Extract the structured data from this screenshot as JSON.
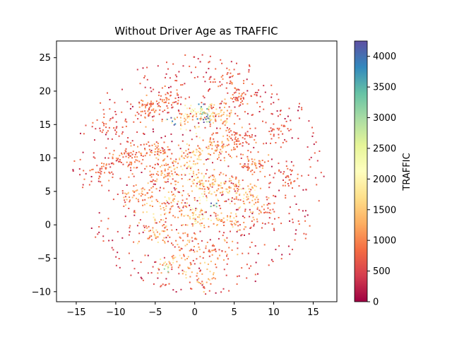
{
  "chart_data": {
    "type": "scatter",
    "title": "Without Driver Age as TRAFFIC",
    "xlabel": "",
    "ylabel": "",
    "xlim": [
      -17.5,
      18
    ],
    "ylim": [
      -11.5,
      27.5
    ],
    "xticks": [
      -15,
      -10,
      -5,
      0,
      5,
      10,
      15
    ],
    "yticks": [
      -10,
      -5,
      0,
      5,
      10,
      15,
      20,
      25
    ],
    "grid": false,
    "colorbar": {
      "label": "TRAFFIC",
      "range": [
        0,
        4250
      ],
      "ticks": [
        0,
        500,
        1000,
        1500,
        2000,
        2500,
        3000,
        3500,
        4000
      ],
      "colormap": "Spectral",
      "colors": [
        "#9e0142",
        "#d53e4f",
        "#f46d43",
        "#fdae61",
        "#fee08b",
        "#ffffbf",
        "#e6f598",
        "#abdda4",
        "#66c2a5",
        "#3288bd",
        "#5e4fa2"
      ]
    },
    "clusters": [
      {
        "x": -6.0,
        "y": 17.5,
        "n": 60,
        "sx": 1.0,
        "sy": 1.0,
        "traffic": 900
      },
      {
        "x": -3.0,
        "y": 19.0,
        "n": 40,
        "sx": 0.8,
        "sy": 0.8,
        "traffic": 800
      },
      {
        "x": -1.0,
        "y": 15.5,
        "n": 40,
        "sx": 0.8,
        "sy": 1.0,
        "traffic": 1500
      },
      {
        "x": 1.0,
        "y": 17.0,
        "n": 35,
        "sx": 0.6,
        "sy": 0.6,
        "traffic": 2800
      },
      {
        "x": 3.0,
        "y": 16.5,
        "n": 60,
        "sx": 1.0,
        "sy": 1.0,
        "traffic": 1300
      },
      {
        "x": 5.5,
        "y": 19.0,
        "n": 35,
        "sx": 0.7,
        "sy": 0.7,
        "traffic": 900
      },
      {
        "x": -8.5,
        "y": 10.0,
        "n": 60,
        "sx": 1.1,
        "sy": 1.2,
        "traffic": 900
      },
      {
        "x": -5.0,
        "y": 11.0,
        "n": 45,
        "sx": 0.8,
        "sy": 0.8,
        "traffic": 1000
      },
      {
        "x": -3.5,
        "y": 8.0,
        "n": 70,
        "sx": 1.2,
        "sy": 1.2,
        "traffic": 1100
      },
      {
        "x": -0.5,
        "y": 10.0,
        "n": 60,
        "sx": 1.0,
        "sy": 1.3,
        "traffic": 1400
      },
      {
        "x": 2.5,
        "y": 11.5,
        "n": 70,
        "sx": 1.3,
        "sy": 1.2,
        "traffic": 1200
      },
      {
        "x": 5.5,
        "y": 12.5,
        "n": 50,
        "sx": 1.0,
        "sy": 1.0,
        "traffic": 900
      },
      {
        "x": 7.5,
        "y": 9.0,
        "n": 45,
        "sx": 1.0,
        "sy": 1.0,
        "traffic": 1000
      },
      {
        "x": 0.5,
        "y": 6.0,
        "n": 60,
        "sx": 1.3,
        "sy": 1.0,
        "traffic": 1700
      },
      {
        "x": 3.5,
        "y": 5.5,
        "n": 60,
        "sx": 1.2,
        "sy": 1.0,
        "traffic": 1300
      },
      {
        "x": 6.5,
        "y": 4.5,
        "n": 50,
        "sx": 1.0,
        "sy": 1.0,
        "traffic": 1600
      },
      {
        "x": -7.0,
        "y": 4.5,
        "n": 50,
        "sx": 1.2,
        "sy": 1.0,
        "traffic": 1100
      },
      {
        "x": -3.0,
        "y": 3.0,
        "n": 50,
        "sx": 1.2,
        "sy": 1.0,
        "traffic": 1400
      },
      {
        "x": 0.5,
        "y": 1.5,
        "n": 50,
        "sx": 1.2,
        "sy": 1.0,
        "traffic": 1700
      },
      {
        "x": 4.5,
        "y": 0.5,
        "n": 45,
        "sx": 1.2,
        "sy": 1.0,
        "traffic": 1200
      },
      {
        "x": -5.0,
        "y": -1.0,
        "n": 45,
        "sx": 1.2,
        "sy": 1.0,
        "traffic": 1300
      },
      {
        "x": -1.0,
        "y": -2.5,
        "n": 40,
        "sx": 1.2,
        "sy": 1.0,
        "traffic": 1100
      },
      {
        "x": 2.5,
        "y": -4.0,
        "n": 40,
        "sx": 1.2,
        "sy": 1.0,
        "traffic": 1000
      },
      {
        "x": -3.0,
        "y": -6.0,
        "n": 35,
        "sx": 1.2,
        "sy": 1.0,
        "traffic": 1400
      },
      {
        "x": 1.0,
        "y": -8.0,
        "n": 30,
        "sx": 1.0,
        "sy": 0.8,
        "traffic": 1200
      },
      {
        "x": 10.5,
        "y": 14.0,
        "n": 30,
        "sx": 1.0,
        "sy": 1.0,
        "traffic": 800
      },
      {
        "x": 11.5,
        "y": 7.5,
        "n": 30,
        "sx": 1.0,
        "sy": 1.0,
        "traffic": 700
      },
      {
        "x": 8.5,
        "y": 2.5,
        "n": 30,
        "sx": 1.0,
        "sy": 1.0,
        "traffic": 1000
      },
      {
        "x": -10.5,
        "y": 15.0,
        "n": 30,
        "sx": 1.0,
        "sy": 1.0,
        "traffic": 700
      },
      {
        "x": -11.5,
        "y": 8.0,
        "n": 30,
        "sx": 1.0,
        "sy": 1.0,
        "traffic": 800
      },
      {
        "x": 4.0,
        "y": 21.5,
        "n": 25,
        "sx": 1.0,
        "sy": 0.8,
        "traffic": 900
      },
      {
        "x": 1.5,
        "y": 15.8,
        "n": 12,
        "sx": 0.3,
        "sy": 0.3,
        "traffic": 3600
      },
      {
        "x": 2.5,
        "y": 3.0,
        "n": 8,
        "sx": 0.3,
        "sy": 0.3,
        "traffic": 3400
      },
      {
        "x": -3.0,
        "y": 15.5,
        "n": 8,
        "sx": 0.3,
        "sy": 0.3,
        "traffic": 3200
      },
      {
        "x": -3.5,
        "y": -6.5,
        "n": 8,
        "sx": 0.3,
        "sy": 0.3,
        "traffic": 2600
      }
    ],
    "background": {
      "n": 900,
      "x_range": [
        -15.5,
        16.5
      ],
      "y_range": [
        -10.5,
        25.5
      ],
      "traffic": 450
    }
  }
}
